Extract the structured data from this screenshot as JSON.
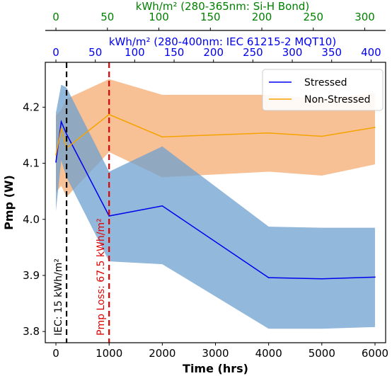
{
  "chart_data": {
    "type": "line",
    "xlabel": "Time (hrs)",
    "ylabel": "Pmp (W)",
    "xlim": [
      -200,
      6200
    ],
    "ylim": [
      3.78,
      4.28
    ],
    "x_ticks": [
      0,
      1000,
      2000,
      3000,
      4000,
      5000,
      6000
    ],
    "y_ticks": [
      3.8,
      3.9,
      4.0,
      4.1,
      4.2
    ],
    "y_tick_labels": [
      "3.8",
      "3.9",
      "4.0",
      "4.1",
      "4.2"
    ],
    "series": [
      {
        "name": "Stressed",
        "color": "#0000ee",
        "band_color": "#6ea0cf",
        "x": [
          0,
          100,
          200,
          1000,
          2000,
          4000,
          5000,
          6000
        ],
        "y": [
          4.102,
          4.174,
          4.152,
          4.006,
          4.024,
          3.896,
          3.894,
          3.897
        ],
        "upper": [
          4.19,
          4.24,
          4.235,
          4.085,
          4.13,
          3.987,
          3.985,
          3.985
        ],
        "lower": [
          4.015,
          4.105,
          4.075,
          3.925,
          3.92,
          3.805,
          3.805,
          3.808
        ]
      },
      {
        "name": "Non-Stressed",
        "color": "#f5a300",
        "band_color": "#f6ab72",
        "x": [
          0,
          100,
          200,
          1000,
          2000,
          4000,
          5000,
          6000
        ],
        "y": [
          4.115,
          4.162,
          4.127,
          4.187,
          4.147,
          4.154,
          4.148,
          4.164
        ],
        "upper": [
          4.185,
          4.195,
          4.215,
          4.25,
          4.222,
          4.222,
          4.215,
          4.225
        ],
        "lower": [
          4.048,
          4.06,
          4.04,
          4.12,
          4.075,
          4.085,
          4.078,
          4.098
        ]
      }
    ],
    "vlines": [
      {
        "x": 200,
        "color": "#000000",
        "label": "IEC: 15 kWh/m²"
      },
      {
        "x": 1000,
        "color": "#e00000",
        "label": "Pmp Loss: 67.5 kWh/m²"
      }
    ],
    "top_axes": [
      {
        "title": "kWh/m² (280-365nm: Si-H Bond)",
        "color": "#008000",
        "ticks": [
          0,
          50,
          100,
          150,
          200,
          250,
          300
        ],
        "hrs_per_unit": 19.36
      },
      {
        "title": "kWh/m² (280-400nm: IEC 61215-2 MQT10)",
        "color": "#0000ee",
        "ticks": [
          0,
          50,
          100,
          150,
          200,
          250,
          300,
          350,
          400
        ],
        "hrs_per_unit": 14.815
      }
    ],
    "legend": {
      "position": "top-right",
      "entries": [
        "Stressed",
        "Non-Stressed"
      ]
    }
  }
}
